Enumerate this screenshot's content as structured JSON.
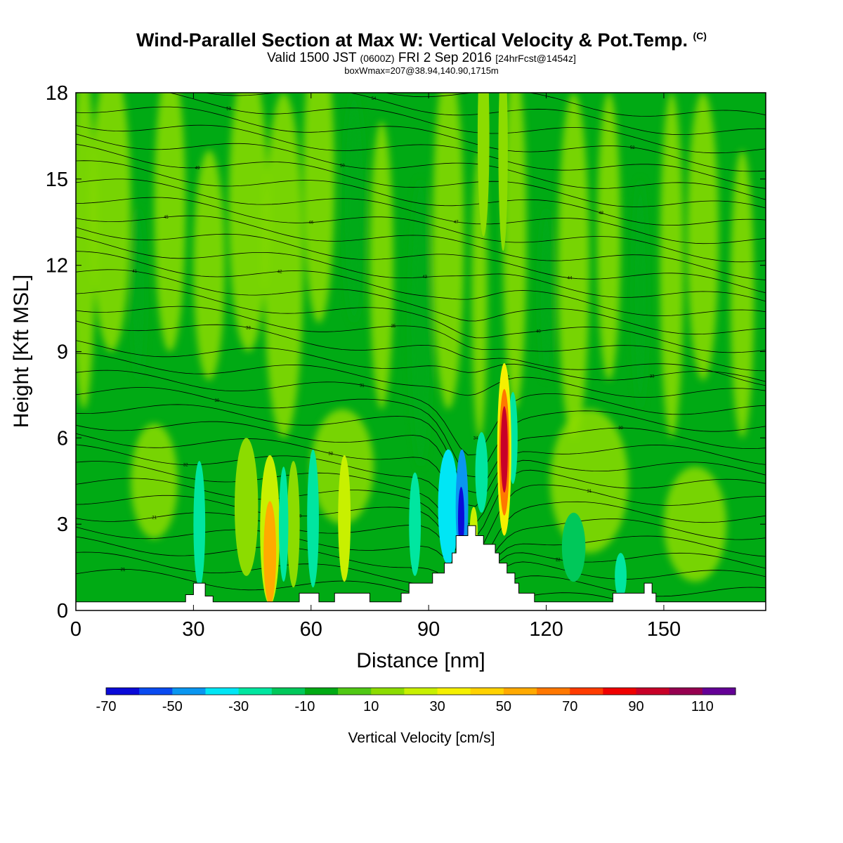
{
  "title": {
    "main": "Wind-Parallel Section at Max W: Vertical Velocity & Pot.Temp.",
    "copyright": "(C)",
    "valid_prefix": "Valid 1500 JST",
    "valid_utc": "(0600Z)",
    "valid_date": "FRI 2 Sep 2016",
    "valid_fcst": "[24hrFcst@1454z]",
    "boxw": "boxWmax=207@38.94,140.90,1715m"
  },
  "chart_data": {
    "type": "heatmap",
    "xlabel": "Distance [nm]",
    "ylabel": "Height [Kft MSL]",
    "xlim": [
      0,
      176
    ],
    "ylim": [
      0,
      18
    ],
    "x_ticks": [
      "0",
      "30",
      "60",
      "90",
      "120",
      "150"
    ],
    "x_tick_values": [
      0,
      30,
      60,
      90,
      120,
      150
    ],
    "y_ticks": [
      "0",
      "3",
      "6",
      "9",
      "12",
      "15",
      "18"
    ],
    "y_tick_values": [
      0,
      3,
      6,
      9,
      12,
      15,
      18
    ],
    "colorbar": {
      "label": "Vertical Velocity [cm/s]",
      "tick_labels": [
        "-70",
        "-50",
        "-30",
        "-10",
        "10",
        "30",
        "50",
        "70",
        "90",
        "110"
      ],
      "bounds": [
        -70,
        -60,
        -50,
        -40,
        -30,
        -20,
        -10,
        0,
        10,
        20,
        30,
        40,
        50,
        60,
        70,
        80,
        90,
        100,
        110,
        120
      ],
      "colors": [
        "#0a0ad8",
        "#0a4bf0",
        "#0a96f0",
        "#00e6f5",
        "#00e6a0",
        "#00c85a",
        "#00aa14",
        "#50c814",
        "#8cdc00",
        "#c8f000",
        "#f5f000",
        "#ffd200",
        "#ffaa00",
        "#ff7800",
        "#ff3c00",
        "#f00000",
        "#c80028",
        "#960050",
        "#640096"
      ]
    },
    "terrain": [
      [
        0,
        0.3
      ],
      [
        28,
        0.3
      ],
      [
        28,
        0.55
      ],
      [
        30,
        0.55
      ],
      [
        30,
        0.95
      ],
      [
        33,
        0.95
      ],
      [
        33,
        0.5
      ],
      [
        35,
        0.5
      ],
      [
        35,
        0.3
      ],
      [
        57,
        0.3
      ],
      [
        57,
        0.6
      ],
      [
        62,
        0.6
      ],
      [
        62,
        0.3
      ],
      [
        66,
        0.3
      ],
      [
        66,
        0.6
      ],
      [
        75,
        0.6
      ],
      [
        75,
        0.3
      ],
      [
        83,
        0.3
      ],
      [
        83,
        0.6
      ],
      [
        85,
        0.6
      ],
      [
        85,
        0.95
      ],
      [
        91,
        0.95
      ],
      [
        91,
        1.3
      ],
      [
        94,
        1.3
      ],
      [
        94,
        1.65
      ],
      [
        96,
        1.65
      ],
      [
        96,
        2.0
      ],
      [
        97,
        2.0
      ],
      [
        97,
        2.6
      ],
      [
        100,
        2.6
      ],
      [
        100,
        2.95
      ],
      [
        102,
        2.95
      ],
      [
        102,
        2.6
      ],
      [
        104,
        2.6
      ],
      [
        104,
        2.3
      ],
      [
        107,
        2.3
      ],
      [
        107,
        2.0
      ],
      [
        108,
        2.0
      ],
      [
        108,
        1.65
      ],
      [
        110,
        1.65
      ],
      [
        110,
        1.3
      ],
      [
        112,
        1.3
      ],
      [
        112,
        0.95
      ],
      [
        113,
        0.95
      ],
      [
        113,
        0.6
      ],
      [
        117,
        0.6
      ],
      [
        117,
        0.3
      ],
      [
        137,
        0.3
      ],
      [
        137,
        0.6
      ],
      [
        145,
        0.6
      ],
      [
        145,
        0.95
      ],
      [
        147,
        0.95
      ],
      [
        147,
        0.6
      ],
      [
        148,
        0.6
      ],
      [
        148,
        0.3
      ],
      [
        176,
        0.3
      ]
    ],
    "vertical_velocity_cells": [
      {
        "x": 49.5,
        "y": 2.0,
        "rx": 1.6,
        "ry": 1.8,
        "w": 50
      },
      {
        "x": 49.5,
        "y": 2.8,
        "rx": 2.5,
        "ry": 2.6,
        "w": 25
      },
      {
        "x": 43.5,
        "y": 3.6,
        "rx": 3.0,
        "ry": 2.4,
        "w": 15
      },
      {
        "x": 68.5,
        "y": 3.2,
        "rx": 1.6,
        "ry": 2.2,
        "w": 25
      },
      {
        "x": 55.5,
        "y": 3.0,
        "rx": 1.6,
        "ry": 2.2,
        "w": 15
      },
      {
        "x": 31.5,
        "y": 3.0,
        "rx": 1.5,
        "ry": 2.2,
        "w": -25
      },
      {
        "x": 53.0,
        "y": 3.0,
        "rx": 1.2,
        "ry": 2.0,
        "w": -25
      },
      {
        "x": 60.5,
        "y": 3.2,
        "rx": 1.5,
        "ry": 2.4,
        "w": -25
      },
      {
        "x": 86.5,
        "y": 3.0,
        "rx": 1.5,
        "ry": 1.8,
        "w": -25
      },
      {
        "x": 95.0,
        "y": 3.6,
        "rx": 2.6,
        "ry": 2.0,
        "w": -35
      },
      {
        "x": 98.5,
        "y": 3.6,
        "rx": 1.6,
        "ry": 2.0,
        "w": -45
      },
      {
        "x": 98.3,
        "y": 3.2,
        "rx": 0.8,
        "ry": 1.1,
        "w": -65
      },
      {
        "x": 103.5,
        "y": 4.8,
        "rx": 1.6,
        "ry": 1.4,
        "w": -25
      },
      {
        "x": 111.5,
        "y": 6.0,
        "rx": 1.2,
        "ry": 1.6,
        "w": -25
      },
      {
        "x": 109.3,
        "y": 5.6,
        "rx": 1.8,
        "ry": 3.0,
        "w": 35
      },
      {
        "x": 109.3,
        "y": 5.5,
        "rx": 1.3,
        "ry": 2.2,
        "w": 65
      },
      {
        "x": 109.3,
        "y": 5.6,
        "rx": 0.9,
        "ry": 1.5,
        "w": 95
      },
      {
        "x": 101.5,
        "y": 2.8,
        "rx": 1.0,
        "ry": 0.8,
        "w": 25
      },
      {
        "x": 104.0,
        "y": 16.5,
        "rx": 1.5,
        "ry": 3.5,
        "w": 15
      },
      {
        "x": 109.0,
        "y": 16.0,
        "rx": 1.2,
        "ry": 3.5,
        "w": 15
      },
      {
        "x": 127.0,
        "y": 2.2,
        "rx": 3.0,
        "ry": 1.2,
        "w": -15
      },
      {
        "x": 139.0,
        "y": 1.2,
        "rx": 1.5,
        "ry": 0.8,
        "w": -25
      }
    ],
    "theta_contour_labels": [
      "21",
      "20",
      "21",
      "22",
      "21",
      "20",
      "30",
      "31",
      "32",
      "33",
      "34",
      "30",
      "30",
      "31",
      "32",
      "33",
      "33",
      "35",
      "40",
      "41",
      "42",
      "43",
      "44",
      "45",
      "46",
      "47",
      "48",
      "49",
      "50",
      "51",
      "52",
      "53",
      "54",
      "54"
    ]
  }
}
